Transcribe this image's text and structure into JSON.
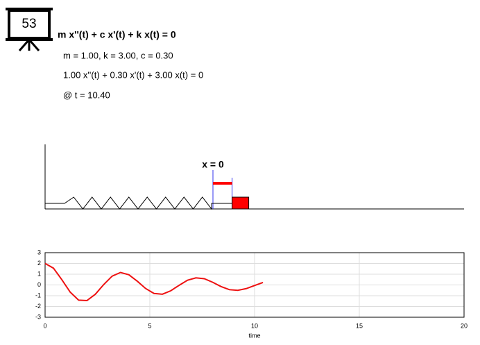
{
  "badge": "53",
  "equation": "m x''(t) + c x'(t) + k x(t) = 0",
  "params": "m = 1.00, k = 3.00, c = 0.30",
  "equation_numeric": "1.00 x''(t) + 0.30 x'(t) + 3.00 x(t) = 0",
  "time_label": "@ t = 10.40",
  "diagram": {
    "origin_label": "x = 0"
  },
  "chart_data": {
    "type": "line",
    "xlabel": "time",
    "color": "#ee1111",
    "x": [
      0,
      0.4,
      0.8,
      1.2,
      1.6,
      2.0,
      2.4,
      2.8,
      3.2,
      3.6,
      4.0,
      4.4,
      4.8,
      5.2,
      5.6,
      6.0,
      6.4,
      6.8,
      7.2,
      7.6,
      8.0,
      8.4,
      8.8,
      9.2,
      9.6,
      10.0,
      10.4
    ],
    "values": [
      2.0,
      1.56,
      0.49,
      -0.67,
      -1.41,
      -1.45,
      -0.86,
      0.04,
      0.82,
      1.16,
      0.95,
      0.35,
      -0.33,
      -0.79,
      -0.86,
      -0.54,
      -0.03,
      0.44,
      0.66,
      0.58,
      0.25,
      -0.15,
      -0.44,
      -0.5,
      -0.34,
      -0.05,
      0.23
    ],
    "xlim": [
      0,
      20
    ],
    "ylim": [
      -3,
      3
    ],
    "xticks": [
      0,
      5,
      10,
      15,
      20
    ],
    "yticks": [
      -3,
      -2,
      -1,
      0,
      1,
      2,
      3
    ],
    "grid": true
  }
}
